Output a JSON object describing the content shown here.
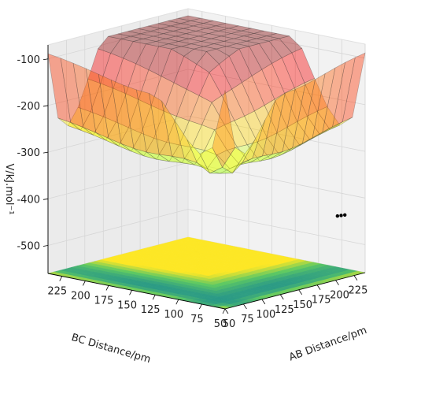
{
  "chart_data": {
    "type": "surface3d",
    "title": "",
    "z_axis": {
      "label": "V/kJ.mol⁻¹",
      "ticks": [
        "-100",
        "-200",
        "-300",
        "-400",
        "-500"
      ],
      "range": [
        -560,
        -70
      ]
    },
    "x_axis": {
      "label": "AB Distance/pm",
      "ticks": [
        "50",
        "75",
        "100",
        "125",
        "150",
        "175",
        "200",
        "225"
      ],
      "range": [
        50,
        240
      ]
    },
    "y_axis": {
      "label": "BC Distance/pm",
      "ticks": [
        "225",
        "200",
        "175",
        "150",
        "125",
        "100",
        "75",
        "50"
      ],
      "range": [
        50,
        240
      ]
    },
    "surface": {
      "colormap": "jet",
      "opacity": 0.4,
      "energy_min": -530,
      "energy_max": -85,
      "saddle_region": "high ridge near 100–150 pm on both axes",
      "reactant_valley": "large BC distance",
      "product_valley": "large AB distance"
    },
    "floor_contour": {
      "colormap": "viridis",
      "plane": "z=-560"
    },
    "trajectory": {
      "color": "#000000",
      "points": [
        [
          205,
          52,
          -425
        ],
        [
          210,
          52,
          -426
        ],
        [
          215,
          52,
          -427
        ]
      ]
    },
    "grid": true
  }
}
